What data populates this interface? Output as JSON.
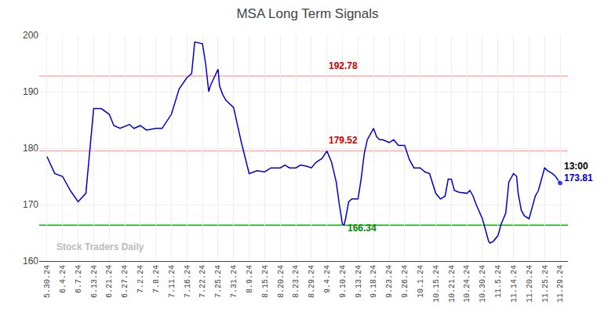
{
  "chart_data": {
    "type": "line",
    "title": "MSA Long Term Signals",
    "x": [
      0,
      0.5,
      1,
      1.5,
      2,
      2.5,
      3,
      3.5,
      4,
      4.3,
      4.7,
      5,
      5.3,
      5.6,
      6,
      6.4,
      7,
      7.4,
      8,
      8.5,
      9,
      9.3,
      9.5,
      10,
      10.2,
      10.4,
      10.5,
      11,
      11.1,
      11.3,
      11.5,
      12,
      12.5,
      13,
      13.3,
      13.5,
      14,
      14.4,
      15,
      15.3,
      15.6,
      16,
      16.3,
      16.7,
      17,
      17.3,
      17.7,
      18,
      18.3,
      18.6,
      18.8,
      19,
      19.1,
      19.2,
      19.4,
      19.6,
      20,
      20.2,
      20.4,
      20.6,
      21,
      21.2,
      21.4,
      21.6,
      22,
      22.3,
      22.6,
      23,
      23.3,
      23.6,
      24,
      24.3,
      24.6,
      25,
      25.3,
      25.6,
      25.8,
      26,
      26.2,
      26.5,
      27,
      27.2,
      27.4,
      27.6,
      28,
      28.2,
      28.4,
      28.5,
      28.7,
      29,
      29.2,
      29.5,
      29.7,
      30,
      30.2,
      30.3,
      30.5,
      30.7,
      31,
      31.2,
      31.4,
      31.6,
      32,
      32.2,
      32.5,
      32.7,
      33
    ],
    "values": [
      178.5,
      175.5,
      175.0,
      172.5,
      170.5,
      172.0,
      187.0,
      187.0,
      186.0,
      184.0,
      183.5,
      183.8,
      184.2,
      183.5,
      184.0,
      183.2,
      183.5,
      183.5,
      186.0,
      190.5,
      192.5,
      193.2,
      198.8,
      198.5,
      195.0,
      190.0,
      191.0,
      194.0,
      191.0,
      189.5,
      188.5,
      187.2,
      181.0,
      175.5,
      175.8,
      176.0,
      175.8,
      176.5,
      176.5,
      177.0,
      176.5,
      176.5,
      177.0,
      176.8,
      176.5,
      177.5,
      178.2,
      179.5,
      177.5,
      174.0,
      170.0,
      166.5,
      166.4,
      167.5,
      170.5,
      171.0,
      171.0,
      174.5,
      179.0,
      181.5,
      183.5,
      182.0,
      181.5,
      181.5,
      181.0,
      181.5,
      180.5,
      180.5,
      178.0,
      176.5,
      176.5,
      175.8,
      175.5,
      172.0,
      171.0,
      171.5,
      174.5,
      174.5,
      172.5,
      172.2,
      172.0,
      172.5,
      171.5,
      170.0,
      167.5,
      165.5,
      163.5,
      163.2,
      163.5,
      164.5,
      166.5,
      168.5,
      174.0,
      175.5,
      175.0,
      172.0,
      169.0,
      168.0,
      167.5,
      169.5,
      171.5,
      172.5,
      176.5,
      176.0,
      175.5,
      175.0,
      173.81
    ],
    "color": "#0000cc",
    "marker": "circle",
    "xlim": [
      -0.5,
      33.5
    ],
    "xticks": [
      {
        "value": 0,
        "label": "5.30.24"
      },
      {
        "value": 1,
        "label": "6.4.24"
      },
      {
        "value": 2,
        "label": "6.7.24"
      },
      {
        "value": 3,
        "label": "6.13.24"
      },
      {
        "value": 4,
        "label": "6.21.24"
      },
      {
        "value": 5,
        "label": "6.27.24"
      },
      {
        "value": 6,
        "label": "7.2.24"
      },
      {
        "value": 7,
        "label": "7.8.24"
      },
      {
        "value": 8,
        "label": "7.11.24"
      },
      {
        "value": 9,
        "label": "7.16.24"
      },
      {
        "value": 10,
        "label": "7.22.24"
      },
      {
        "value": 11,
        "label": "7.25.24"
      },
      {
        "value": 12,
        "label": "7.31.24"
      },
      {
        "value": 13,
        "label": "8.9.24"
      },
      {
        "value": 14,
        "label": "8.15.24"
      },
      {
        "value": 15,
        "label": "8.20.24"
      },
      {
        "value": 16,
        "label": "8.23.24"
      },
      {
        "value": 17,
        "label": "8.29.24"
      },
      {
        "value": 18,
        "label": "9.4.24"
      },
      {
        "value": 19,
        "label": "9.10.24"
      },
      {
        "value": 20,
        "label": "9.13.24"
      },
      {
        "value": 21,
        "label": "9.18.24"
      },
      {
        "value": 22,
        "label": "9.23.24"
      },
      {
        "value": 23,
        "label": "9.26.24"
      },
      {
        "value": 24,
        "label": "10.1.24"
      },
      {
        "value": 25,
        "label": "10.15.24"
      },
      {
        "value": 26,
        "label": "10.21.24"
      },
      {
        "value": 27,
        "label": "10.24.24"
      },
      {
        "value": 28,
        "label": "10.30.24"
      },
      {
        "value": 29,
        "label": "11.5.24"
      },
      {
        "value": 30,
        "label": "11.14.24"
      },
      {
        "value": 31,
        "label": "11.20.24"
      },
      {
        "value": 32,
        "label": "11.25.24"
      },
      {
        "value": 33,
        "label": "11.29.24"
      }
    ],
    "ylim": [
      160,
      200
    ],
    "yticks": [
      160,
      170,
      180,
      190,
      200
    ],
    "grid": true,
    "hlines": [
      {
        "value": 192.78,
        "color": "#ffaaaa"
      },
      {
        "value": 179.52,
        "color": "#ffaaaa"
      },
      {
        "value": 166.34,
        "color": "#00bb00"
      }
    ],
    "annotations": [
      {
        "text": "192.78",
        "x": 18,
        "y": 193.3,
        "color": "#cc0000"
      },
      {
        "text": "179.52",
        "x": 18,
        "y": 180.1,
        "color": "#cc0000"
      },
      {
        "text": "166.34",
        "x": 19.2,
        "y": 164.6,
        "color": "#008800"
      },
      {
        "text": "13:00",
        "x": 33.15,
        "y": 175.61,
        "color": "#000000"
      },
      {
        "text": "173.81",
        "x": 33.15,
        "y": 173.51,
        "color": "#0000cc"
      },
      {
        "text": "Stock Traders Daily",
        "x": 0.5,
        "y": 161.2,
        "color": "#bbbbbb"
      }
    ]
  }
}
